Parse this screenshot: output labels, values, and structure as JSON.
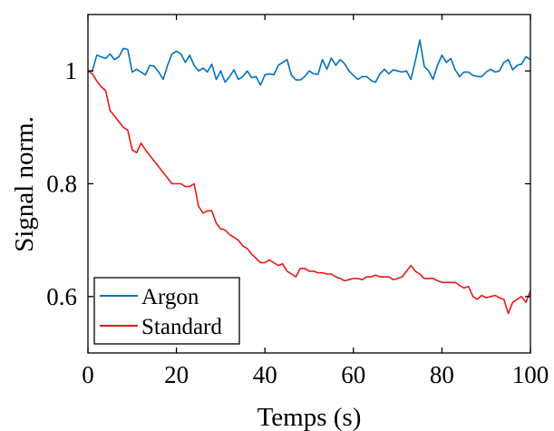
{
  "chart_data": {
    "type": "line",
    "xlabel": "Temps (s)",
    "ylabel": "Signal norm.",
    "xlim": [
      0,
      100
    ],
    "ylim": [
      0.5,
      1.1
    ],
    "xticks": [
      0,
      20,
      40,
      60,
      80,
      100
    ],
    "yticks": [
      0.6,
      0.8,
      1
    ],
    "ytick_labels": [
      "0.6",
      "0.8",
      "1"
    ],
    "legend_position": "bottom-left",
    "grid": false,
    "x": [
      0,
      1,
      2,
      3,
      4,
      5,
      6,
      7,
      8,
      9,
      10,
      11,
      12,
      13,
      14,
      15,
      16,
      17,
      18,
      19,
      20,
      21,
      22,
      23,
      24,
      25,
      26,
      27,
      28,
      29,
      30,
      31,
      32,
      33,
      34,
      35,
      36,
      37,
      38,
      39,
      40,
      41,
      42,
      43,
      44,
      45,
      46,
      47,
      48,
      49,
      50,
      51,
      52,
      53,
      54,
      55,
      56,
      57,
      58,
      59,
      60,
      61,
      62,
      63,
      64,
      65,
      66,
      67,
      68,
      69,
      70,
      71,
      72,
      73,
      74,
      75,
      76,
      77,
      78,
      79,
      80,
      81,
      82,
      83,
      84,
      85,
      86,
      87,
      88,
      89,
      90,
      91,
      92,
      93,
      94,
      95,
      96,
      97,
      98,
      99,
      100
    ],
    "series": [
      {
        "name": "Argon",
        "color": "#0072BD",
        "values": [
          1.0,
          1.0,
          1.028,
          1.025,
          1.022,
          1.03,
          1.02,
          1.025,
          1.04,
          1.038,
          0.998,
          1.003,
          0.998,
          0.993,
          1.01,
          1.008,
          0.998,
          0.985,
          1.01,
          1.03,
          1.035,
          1.03,
          1.015,
          1.028,
          1.01,
          1.0,
          1.005,
          0.998,
          1.012,
          0.985,
          1.0,
          0.98,
          0.99,
          1.002,
          0.985,
          0.99,
          1.0,
          0.988,
          0.99,
          0.975,
          0.993,
          0.995,
          0.993,
          1.01,
          1.015,
          1.02,
          0.992,
          0.984,
          0.984,
          0.99,
          1.0,
          0.995,
          0.994,
          1.02,
          1.003,
          1.023,
          1.01,
          1.02,
          1.013,
          1.0,
          0.992,
          0.985,
          0.99,
          0.99,
          0.983,
          0.98,
          0.995,
          1.003,
          0.995,
          1.002,
          1.0,
          0.998,
          1.0,
          0.985,
          1.018,
          1.055,
          1.008,
          1.0,
          0.985,
          1.01,
          1.028,
          1.015,
          1.022,
          1.002,
          0.99,
          0.998,
          0.998,
          0.992,
          0.99,
          0.99,
          0.998,
          1.003,
          0.998,
          1.0,
          1.015,
          1.02,
          1.002,
          1.01,
          1.012,
          1.025,
          1.02
        ]
      },
      {
        "name": "Standard",
        "color": "#E6191A",
        "values": [
          1.0,
          0.995,
          0.982,
          0.972,
          0.965,
          0.93,
          0.92,
          0.91,
          0.9,
          0.895,
          0.86,
          0.855,
          0.872,
          0.86,
          0.85,
          0.84,
          0.83,
          0.82,
          0.81,
          0.8,
          0.8,
          0.8,
          0.795,
          0.795,
          0.8,
          0.76,
          0.748,
          0.752,
          0.752,
          0.73,
          0.72,
          0.718,
          0.71,
          0.705,
          0.7,
          0.69,
          0.685,
          0.675,
          0.668,
          0.66,
          0.66,
          0.665,
          0.66,
          0.655,
          0.658,
          0.645,
          0.64,
          0.635,
          0.65,
          0.65,
          0.645,
          0.645,
          0.642,
          0.642,
          0.64,
          0.64,
          0.635,
          0.632,
          0.628,
          0.63,
          0.632,
          0.632,
          0.63,
          0.635,
          0.635,
          0.638,
          0.635,
          0.635,
          0.635,
          0.63,
          0.632,
          0.635,
          0.645,
          0.655,
          0.645,
          0.64,
          0.632,
          0.632,
          0.632,
          0.628,
          0.625,
          0.625,
          0.625,
          0.625,
          0.62,
          0.615,
          0.618,
          0.6,
          0.595,
          0.602,
          0.598,
          0.6,
          0.602,
          0.598,
          0.595,
          0.57,
          0.59,
          0.595,
          0.6,
          0.59,
          0.61
        ]
      }
    ]
  }
}
